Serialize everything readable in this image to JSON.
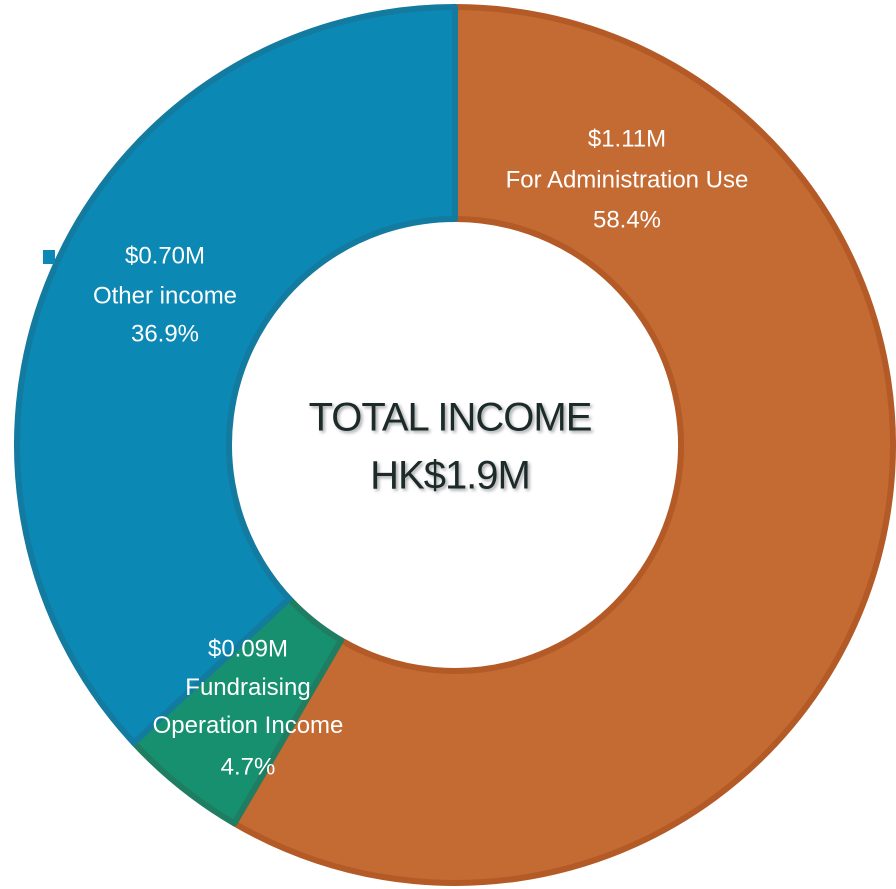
{
  "chart_data": {
    "type": "donut",
    "categories": [
      "For Administration Use",
      "Fundraising\nOperation Income",
      "Other income"
    ],
    "values": [
      58.4,
      4.7,
      36.9
    ],
    "value_labels": [
      "58.4%",
      "4.7%",
      "36.9%"
    ],
    "amounts": [
      1.11,
      0.09,
      0.7
    ],
    "amount_labels": [
      "$1.11M",
      "$0.09M",
      "$0.70M"
    ],
    "colors": [
      "#c46a33",
      "#17906f",
      "#0b88b4"
    ],
    "center_label": [
      "TOTAL INCOME",
      "HK$1.9M"
    ]
  }
}
